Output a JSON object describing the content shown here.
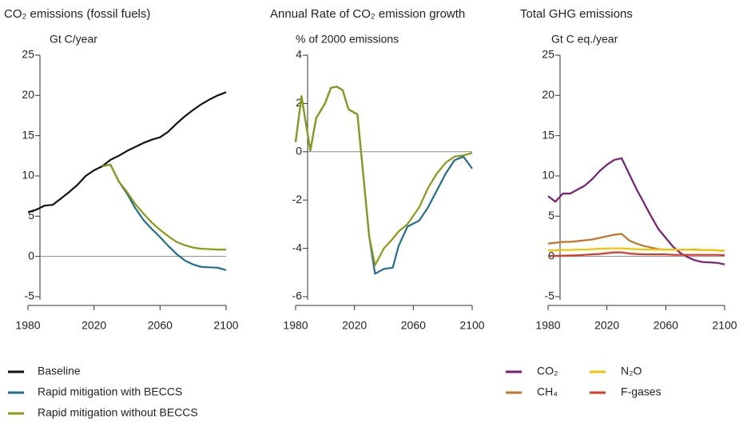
{
  "chart_data": [
    {
      "type": "line",
      "title": "CO₂ emissions (fossil fuels)",
      "y_label": "Gt C/year",
      "x": [
        1980,
        1985,
        1990,
        1995,
        2000,
        2005,
        2010,
        2015,
        2020,
        2025,
        2030,
        2035,
        2040,
        2045,
        2050,
        2055,
        2060,
        2065,
        2070,
        2075,
        2080,
        2085,
        2090,
        2095,
        2100
      ],
      "xlim": [
        1980,
        2100
      ],
      "xticks": [
        1980,
        2020,
        2060,
        2100
      ],
      "ylim": [
        -5,
        25
      ],
      "yticks": [
        -5,
        0,
        5,
        10,
        15,
        20,
        25
      ],
      "legend": "bottom-left",
      "series": [
        {
          "name": "Baseline",
          "color": "#111111",
          "values": [
            5.5,
            5.8,
            6.3,
            6.4,
            7.2,
            8.0,
            8.9,
            10.0,
            10.7,
            11.2,
            12.0,
            12.5,
            13.1,
            13.6,
            14.1,
            14.5,
            14.8,
            15.5,
            16.5,
            17.4,
            18.2,
            18.9,
            19.5,
            20.0,
            20.4
          ]
        },
        {
          "name": "Rapid mitigation with BECCS",
          "color": "#1f6f94",
          "values": [
            null,
            null,
            null,
            null,
            null,
            null,
            null,
            null,
            null,
            11.2,
            11.4,
            9.3,
            7.8,
            6.0,
            4.5,
            3.4,
            2.4,
            1.3,
            0.3,
            -0.5,
            -1.0,
            -1.3,
            -1.35,
            -1.4,
            -1.7
          ]
        },
        {
          "name": "Rapid mitigation without BECCS",
          "color": "#8a9a12",
          "values": [
            null,
            null,
            null,
            null,
            null,
            null,
            null,
            null,
            null,
            11.2,
            11.4,
            9.3,
            8.0,
            6.5,
            5.3,
            4.2,
            3.3,
            2.5,
            1.8,
            1.4,
            1.1,
            0.95,
            0.9,
            0.85,
            0.85
          ]
        }
      ]
    },
    {
      "type": "line",
      "title": "Annual Rate of CO₂ emission growth",
      "y_label": "% of 2000 emissions",
      "x": [
        1980,
        1984,
        1990,
        1994,
        2000,
        2004,
        2008,
        2012,
        2016,
        2022,
        2030,
        2034,
        2040,
        2046,
        2050,
        2056,
        2064,
        2070,
        2076,
        2082,
        2088,
        2094,
        2100
      ],
      "xlim": [
        1980,
        2100
      ],
      "xticks": [
        1980,
        2020,
        2060,
        2100
      ],
      "ylim": [
        -6,
        4
      ],
      "yticks": [
        -6,
        -4,
        -2,
        0,
        2,
        4
      ],
      "series": [
        {
          "color": "#1f6f94",
          "values": [
            0.4,
            2.3,
            0.05,
            1.4,
            2.0,
            2.65,
            2.7,
            2.55,
            1.75,
            1.55,
            -3.5,
            -5.05,
            -4.85,
            -4.8,
            -3.9,
            -3.1,
            -2.85,
            -2.3,
            -1.6,
            -0.9,
            -0.35,
            -0.2,
            -0.7
          ]
        },
        {
          "color": "#8a9a12",
          "values": [
            0.4,
            2.3,
            0.05,
            1.4,
            2.0,
            2.65,
            2.7,
            2.55,
            1.75,
            1.55,
            -3.5,
            -4.7,
            -4.0,
            -3.6,
            -3.3,
            -3.0,
            -2.3,
            -1.5,
            -0.9,
            -0.45,
            -0.2,
            -0.15,
            -0.05
          ]
        }
      ]
    },
    {
      "type": "line",
      "title": "Total GHG emissions",
      "y_label": "Gt C eq./year",
      "x": [
        1980,
        1985,
        1990,
        1995,
        2000,
        2005,
        2010,
        2015,
        2020,
        2025,
        2030,
        2035,
        2040,
        2045,
        2050,
        2055,
        2060,
        2065,
        2070,
        2075,
        2080,
        2085,
        2090,
        2095,
        2100
      ],
      "xlim": [
        1980,
        2100
      ],
      "xticks": [
        1980,
        2020,
        2060,
        2100
      ],
      "ylim": [
        -5,
        25
      ],
      "yticks": [
        -5,
        0,
        5,
        10,
        15,
        20,
        25
      ],
      "legend": "bottom-right",
      "series": [
        {
          "name": "CO₂",
          "color": "#7b1e7a",
          "values": [
            7.5,
            6.8,
            7.8,
            7.8,
            8.3,
            8.8,
            9.6,
            10.6,
            11.4,
            12.0,
            12.2,
            10.3,
            8.4,
            6.7,
            5.0,
            3.4,
            2.3,
            1.2,
            0.4,
            -0.1,
            -0.5,
            -0.7,
            -0.75,
            -0.8,
            -1.0
          ]
        },
        {
          "name": "CH₄",
          "color": "#c07828",
          "values": [
            1.6,
            1.7,
            1.8,
            1.8,
            1.9,
            2.0,
            2.1,
            2.3,
            2.5,
            2.7,
            2.8,
            2.0,
            1.6,
            1.3,
            1.1,
            0.9,
            0.85,
            0.85,
            0.85,
            0.85,
            0.85,
            0.8,
            0.8,
            0.75,
            0.7
          ]
        },
        {
          "name": "N₂O",
          "color": "#f5c400",
          "values": [
            0.75,
            0.75,
            0.8,
            0.8,
            0.85,
            0.85,
            0.9,
            0.95,
            1.0,
            1.0,
            1.0,
            0.95,
            0.9,
            0.85,
            0.85,
            0.85,
            0.85,
            0.85,
            0.85,
            0.85,
            0.8,
            0.8,
            0.8,
            0.75,
            0.75
          ]
        },
        {
          "name": "F-gases",
          "color": "#d63a2a",
          "values": [
            0.05,
            0.07,
            0.1,
            0.12,
            0.15,
            0.2,
            0.25,
            0.3,
            0.4,
            0.5,
            0.5,
            0.35,
            0.3,
            0.25,
            0.25,
            0.25,
            0.25,
            0.2,
            0.2,
            0.2,
            0.2,
            0.2,
            0.2,
            0.2,
            0.15
          ]
        }
      ]
    }
  ]
}
